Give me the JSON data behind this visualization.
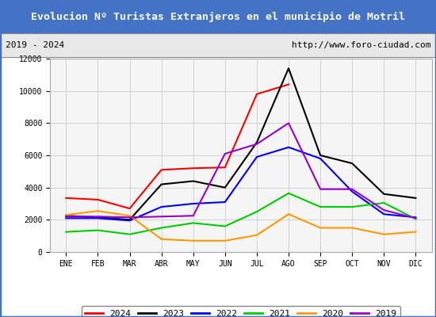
{
  "title": "Evolucion Nº Turistas Extranjeros en el municipio de Motril",
  "subtitle_left": "2019 - 2024",
  "subtitle_right": "http://www.foro-ciudad.com",
  "title_bg_color": "#4472c4",
  "title_text_color": "#ffffff",
  "months": [
    "ENE",
    "FEB",
    "MAR",
    "ABR",
    "MAY",
    "JUN",
    "JUL",
    "AGO",
    "SEP",
    "OCT",
    "NOV",
    "DIC"
  ],
  "ylim": [
    0,
    12000
  ],
  "yticks": [
    0,
    2000,
    4000,
    6000,
    8000,
    10000,
    12000
  ],
  "series": {
    "2024": {
      "color": "#ff0000",
      "data": [
        3350,
        3250,
        2700,
        5100,
        5200,
        5250,
        9800,
        10400,
        null,
        null,
        null,
        null
      ]
    },
    "2023": {
      "color": "#000000",
      "data": [
        2250,
        2150,
        2000,
        4200,
        4400,
        4000,
        6800,
        11400,
        6000,
        5500,
        3600,
        3350
      ]
    },
    "2022": {
      "color": "#0000ff",
      "data": [
        2100,
        2100,
        1950,
        2800,
        3000,
        3100,
        5900,
        6500,
        5800,
        3750,
        2350,
        2150
      ]
    },
    "2021": {
      "color": "#00cc00",
      "data": [
        1250,
        1350,
        1100,
        1500,
        1800,
        1600,
        2500,
        3650,
        2800,
        2800,
        3050,
        2050
      ]
    },
    "2020": {
      "color": "#ff9900",
      "data": [
        2300,
        2550,
        2250,
        800,
        700,
        700,
        1050,
        2350,
        1500,
        1500,
        1100,
        1250
      ]
    },
    "2019": {
      "color": "#9900cc",
      "data": [
        2200,
        2200,
        2150,
        2200,
        2250,
        6100,
        6700,
        8000,
        3900,
        3900,
        2600,
        2100
      ]
    }
  },
  "legend_order": [
    "2024",
    "2023",
    "2022",
    "2021",
    "2020",
    "2019"
  ],
  "bg_color": "#f0f0f0",
  "plot_bg_color": "#f5f5f5",
  "grid_color": "#cccccc",
  "border_color": "#4472c4"
}
